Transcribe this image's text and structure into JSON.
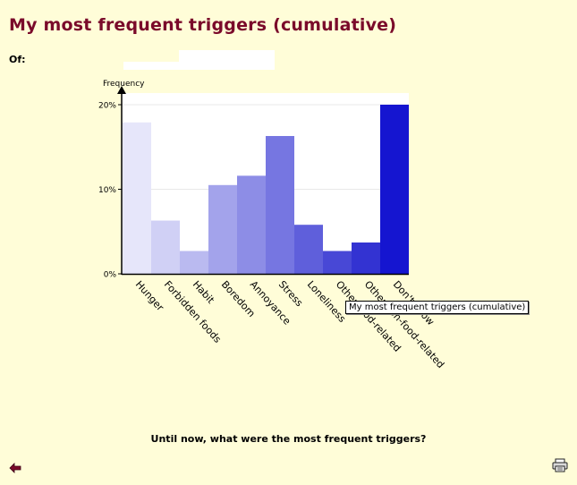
{
  "page": {
    "title": "My most frequent triggers (cumulative)",
    "of_label": "Of:",
    "caption": "Until now, what were the most frequent triggers?",
    "tooltip": "My most frequent triggers (cumulative)"
  },
  "icons": {
    "back": "back-arrow-icon",
    "print": "printer-icon"
  },
  "colors": {
    "title": "#7a0a2a",
    "background": "#fffdd8",
    "plot_background": "#ffffff"
  },
  "chart_data": {
    "type": "bar",
    "ylabel": "Frequency",
    "xlabel": "",
    "ylim": [
      0,
      21
    ],
    "yticks": [
      {
        "value": 0,
        "label": "0%"
      },
      {
        "value": 10,
        "label": "10%"
      },
      {
        "value": 20,
        "label": "20%"
      }
    ],
    "categories": [
      "Hunger",
      "Forbidden foods",
      "Habit",
      "Boredom",
      "Annoyance",
      "Stress",
      "Loneliness",
      "Other food-related",
      "Other non-food-related",
      "Don't know"
    ],
    "values": [
      17.9,
      6.3,
      2.7,
      10.5,
      11.6,
      16.3,
      5.8,
      2.7,
      3.7,
      20.0
    ],
    "colors": [
      "#e6e6fa",
      "#d0d0f5",
      "#babaf0",
      "#a3a3eb",
      "#8d8de6",
      "#7676e1",
      "#5f5fdb",
      "#4848d6",
      "#3333d2",
      "#1515d0"
    ]
  }
}
